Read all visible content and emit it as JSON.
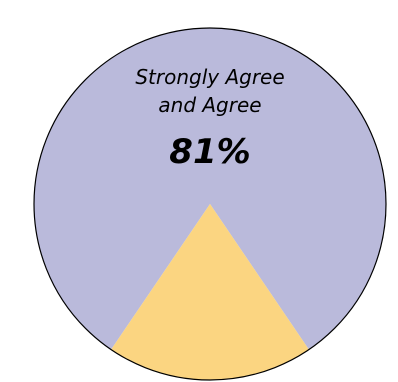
{
  "chart_data": {
    "type": "pie",
    "slices": [
      {
        "label_lines": [
          "Strongly Agree",
          "and Agree"
        ],
        "value": 81,
        "value_label": "81%",
        "color": "#babadb"
      },
      {
        "label_lines": [],
        "value": 19,
        "value_label": "",
        "color": "#fbd581"
      }
    ],
    "outline_color": "#000000"
  }
}
